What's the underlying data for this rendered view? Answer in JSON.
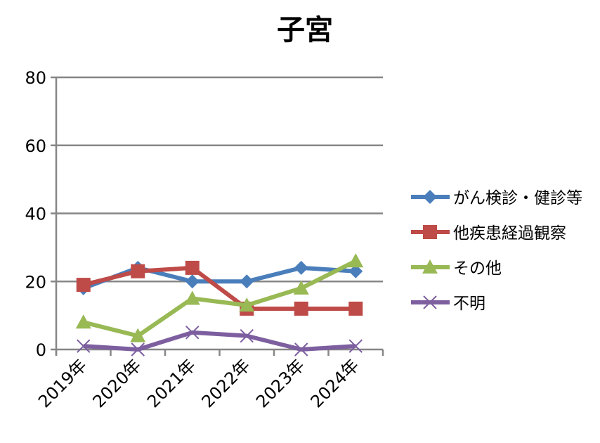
{
  "chart_data": {
    "type": "line",
    "title": "子宮",
    "xlabel": "",
    "ylabel": "",
    "categories": [
      "2019年",
      "2020年",
      "2021年",
      "2022年",
      "2023年",
      "2024年"
    ],
    "ylim": [
      0,
      80
    ],
    "yticks": [
      "0",
      "20",
      "40",
      "60",
      "80"
    ],
    "grid": true,
    "legend_position": "right",
    "series": [
      {
        "name": "がん検診・健診等",
        "color": "#4a7ebb",
        "marker": "diamond",
        "values": [
          18,
          24,
          20,
          20,
          24,
          23
        ]
      },
      {
        "name": "他疾患経過観察",
        "color": "#be4b48",
        "marker": "square",
        "values": [
          19,
          23,
          24,
          12,
          12,
          12
        ]
      },
      {
        "name": "その他",
        "color": "#98b954",
        "marker": "triangle",
        "values": [
          8,
          4,
          15,
          13,
          18,
          26
        ]
      },
      {
        "name": "不明",
        "color": "#7d5fa0",
        "marker": "x",
        "values": [
          1,
          0,
          5,
          4,
          0,
          1
        ]
      }
    ]
  }
}
